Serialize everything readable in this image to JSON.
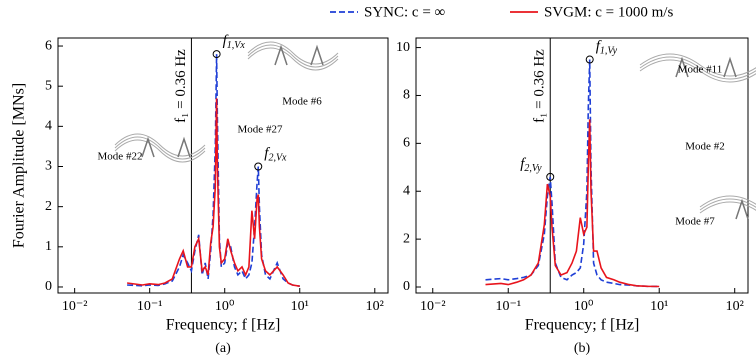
{
  "chart_data": [
    {
      "type": "line",
      "log_x": true,
      "ylabel": "Fourier Amplitude [MNs]",
      "xlabel": "Frequency; f [Hz]",
      "caption": "(a)",
      "x": [
        0.05,
        0.08,
        0.1,
        0.13,
        0.16,
        0.2,
        0.25,
        0.28,
        0.32,
        0.36,
        0.4,
        0.45,
        0.5,
        0.55,
        0.6,
        0.65,
        0.7,
        0.75,
        0.78,
        0.8,
        0.85,
        0.9,
        1.0,
        1.1,
        1.2,
        1.35,
        1.5,
        1.7,
        1.9,
        2.1,
        2.3,
        2.5,
        2.7,
        2.8,
        2.9,
        3.1,
        3.5,
        4,
        5,
        6,
        7,
        8,
        10
      ],
      "series": [
        {
          "name": "SYNC: c = ∞",
          "color": "#1f3fd6",
          "dash": true,
          "values": [
            0.05,
            0.03,
            0.05,
            0.04,
            0.08,
            0.15,
            0.5,
            0.8,
            0.6,
            0.4,
            0.9,
            1.3,
            0.3,
            0.6,
            0.2,
            0.9,
            1.8,
            3.5,
            5.8,
            4.2,
            1.2,
            0.5,
            0.6,
            1.1,
            1.0,
            0.5,
            0.3,
            0.4,
            0.2,
            0.3,
            0.6,
            1.5,
            2.6,
            3.0,
            2.0,
            0.8,
            0.3,
            0.2,
            0.6,
            0.2,
            0.1,
            0.05,
            0.02
          ]
        },
        {
          "name": "SVGM: c = 1000 m/s",
          "color": "#e8141c",
          "dash": false,
          "values": [
            0.1,
            0.05,
            0.08,
            0.06,
            0.1,
            0.2,
            0.7,
            0.9,
            0.5,
            0.5,
            1.0,
            1.2,
            0.4,
            0.5,
            0.3,
            1.1,
            1.5,
            2.5,
            4.7,
            3.0,
            1.0,
            0.6,
            0.7,
            1.2,
            0.9,
            0.6,
            0.4,
            0.5,
            0.3,
            0.5,
            1.9,
            1.2,
            2.2,
            2.3,
            1.5,
            0.7,
            0.4,
            0.3,
            0.5,
            0.3,
            0.1,
            0.05,
            0.02
          ]
        }
      ],
      "xlim": [
        0.006,
        150
      ],
      "xticks": [
        {
          "value": 0.01,
          "label": "10⁻²"
        },
        {
          "value": 0.1,
          "label": "10⁻¹"
        },
        {
          "value": 1,
          "label": "10⁰"
        },
        {
          "value": 10,
          "label": "10¹"
        },
        {
          "value": 100,
          "label": "10²"
        }
      ],
      "ylim": [
        -0.15,
        6.2
      ],
      "yticks": [
        0,
        1,
        2,
        3,
        4,
        5,
        6
      ],
      "vline": {
        "x": 0.36,
        "label": "f₁ = 0.36 Hz"
      },
      "peaks": [
        {
          "symbol": "f",
          "sub": "1,Vx",
          "x": 0.78,
          "y": 5.8
        },
        {
          "symbol": "f",
          "sub": "2,Vx",
          "x": 2.8,
          "y": 3.0
        }
      ],
      "modes": [
        "Mode #6",
        "Mode #27",
        "Mode #22"
      ]
    },
    {
      "type": "line",
      "log_x": true,
      "xlabel": "Frequency; f [Hz]",
      "caption": "(b)",
      "x": [
        0.05,
        0.08,
        0.1,
        0.13,
        0.16,
        0.2,
        0.25,
        0.3,
        0.33,
        0.36,
        0.38,
        0.42,
        0.5,
        0.6,
        0.7,
        0.8,
        0.9,
        1.0,
        1.1,
        1.15,
        1.2,
        1.25,
        1.35,
        1.5,
        1.7,
        2,
        2.5,
        3,
        4,
        5,
        7,
        10
      ],
      "series": [
        {
          "color": "#1f3fd6",
          "dash": true,
          "values": [
            0.3,
            0.35,
            0.3,
            0.35,
            0.4,
            0.5,
            0.9,
            2.2,
            3.8,
            4.6,
            3.5,
            1.0,
            0.4,
            0.3,
            0.5,
            0.6,
            0.8,
            1.8,
            4.0,
            7.5,
            9.5,
            5.0,
            1.0,
            0.5,
            0.3,
            0.2,
            0.15,
            0.1,
            0.08,
            0.05,
            0.03,
            0.02
          ]
        },
        {
          "color": "#e8141c",
          "dash": false,
          "values": [
            0.1,
            0.15,
            0.1,
            0.2,
            0.3,
            0.5,
            1.0,
            2.6,
            4.3,
            3.8,
            2.5,
            0.9,
            0.5,
            0.6,
            1.0,
            1.5,
            2.9,
            2.2,
            2.5,
            5.0,
            7.0,
            4.0,
            1.5,
            1.5,
            0.8,
            0.4,
            0.3,
            0.2,
            0.1,
            0.05,
            0.03,
            0.02
          ]
        }
      ],
      "xlim": [
        0.006,
        150
      ],
      "xticks": [
        {
          "value": 0.01,
          "label": "10⁻²"
        },
        {
          "value": 0.1,
          "label": "10⁻¹"
        },
        {
          "value": 1,
          "label": "10⁰"
        },
        {
          "value": 10,
          "label": "10¹"
        },
        {
          "value": 100,
          "label": "10²"
        }
      ],
      "ylim": [
        -0.25,
        10.4
      ],
      "yticks": [
        0,
        2,
        4,
        6,
        8,
        10
      ],
      "vline": {
        "x": 0.36,
        "label": "f₁ = 0.36 Hz"
      },
      "peaks": [
        {
          "symbol": "f",
          "sub": "1,Vy",
          "x": 1.2,
          "y": 9.5
        },
        {
          "symbol": "f",
          "sub": "2,Vy",
          "x": 0.36,
          "y": 4.6
        }
      ],
      "modes": [
        "Mode #11",
        "Mode #2",
        "Mode #7"
      ]
    }
  ]
}
